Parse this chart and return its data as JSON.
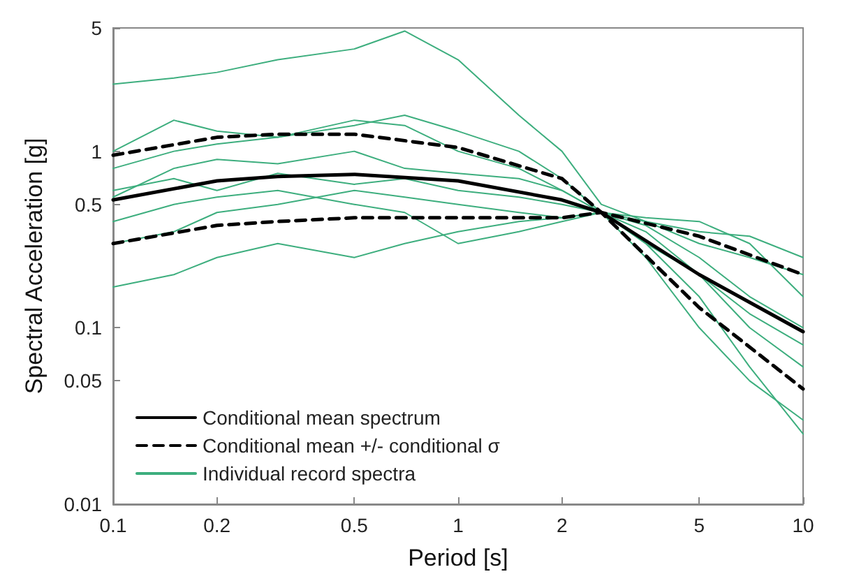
{
  "chart_data": {
    "type": "line",
    "xlabel": "Period [s]",
    "ylabel": "Spectral Acceleration [g]",
    "log": "xy",
    "xlim": [
      0.1,
      10
    ],
    "ylim": [
      0.01,
      5
    ],
    "xticks": [
      0.1,
      0.2,
      0.5,
      1,
      2,
      5,
      10
    ],
    "yticks": [
      0.01,
      0.05,
      0.1,
      0.5,
      1,
      5
    ],
    "grid": false,
    "legend": "bottom left",
    "marker": "none",
    "x": [
      0.1,
      0.15,
      0.2,
      0.3,
      0.5,
      0.7,
      1,
      1.5,
      2,
      2.6,
      3.5,
      5,
      7,
      10
    ],
    "series": [
      {
        "name": "Individual record spectra",
        "color": "#3dae7e",
        "values": [
          2.4,
          2.6,
          2.8,
          3.3,
          3.8,
          4.8,
          3.3,
          1.6,
          1.0,
          0.5,
          0.4,
          0.3,
          0.25,
          0.2
        ]
      },
      {
        "color": "#3dae7e",
        "values": [
          1.0,
          1.5,
          1.3,
          1.2,
          1.4,
          1.6,
          1.3,
          1.0,
          0.7,
          0.45,
          0.4,
          0.35,
          0.33,
          0.25
        ]
      },
      {
        "color": "#3dae7e",
        "values": [
          0.55,
          0.8,
          0.9,
          0.85,
          1.0,
          0.8,
          0.75,
          0.7,
          0.6,
          0.45,
          0.3,
          0.2,
          0.1,
          0.06
        ]
      },
      {
        "color": "#3dae7e",
        "values": [
          0.3,
          0.35,
          0.45,
          0.5,
          0.6,
          0.55,
          0.5,
          0.45,
          0.42,
          0.45,
          0.35,
          0.2,
          0.12,
          0.08
        ]
      },
      {
        "color": "#3dae7e",
        "values": [
          0.17,
          0.2,
          0.25,
          0.3,
          0.25,
          0.3,
          0.35,
          0.4,
          0.42,
          0.45,
          0.3,
          0.15,
          0.06,
          0.025
        ]
      },
      {
        "color": "#3dae7e",
        "values": [
          0.6,
          0.7,
          0.6,
          0.75,
          0.65,
          0.7,
          0.6,
          0.55,
          0.5,
          0.45,
          0.42,
          0.4,
          0.3,
          0.15
        ]
      },
      {
        "color": "#3dae7e",
        "values": [
          0.4,
          0.5,
          0.55,
          0.6,
          0.5,
          0.45,
          0.3,
          0.35,
          0.4,
          0.45,
          0.25,
          0.1,
          0.05,
          0.03
        ]
      },
      {
        "color": "#3dae7e",
        "values": [
          0.8,
          1.0,
          1.1,
          1.2,
          1.5,
          1.4,
          1.0,
          0.8,
          0.6,
          0.45,
          0.38,
          0.25,
          0.15,
          0.1
        ]
      },
      {
        "name": "Conditional mean spectrum",
        "color": "#000000",
        "line_style": "solid",
        "x": [
          0.1,
          0.2,
          0.3,
          0.5,
          1,
          2,
          2.6,
          5,
          10
        ],
        "values": [
          0.53,
          0.68,
          0.72,
          0.74,
          0.68,
          0.53,
          0.45,
          0.2,
          0.095
        ]
      },
      {
        "name": "Conditional mean +/- conditional σ",
        "color": "#000000",
        "line_style": "dashed",
        "x": [
          0.1,
          0.2,
          0.3,
          0.5,
          1,
          2,
          2.6,
          5,
          10
        ],
        "values": [
          0.95,
          1.2,
          1.25,
          1.25,
          1.05,
          0.7,
          0.45,
          0.33,
          0.2
        ]
      },
      {
        "color": "#000000",
        "line_style": "dashed",
        "x": [
          0.1,
          0.2,
          0.3,
          0.5,
          1,
          2,
          2.6,
          5,
          10
        ],
        "values": [
          0.3,
          0.38,
          0.4,
          0.42,
          0.42,
          0.42,
          0.45,
          0.13,
          0.045
        ]
      }
    ]
  }
}
